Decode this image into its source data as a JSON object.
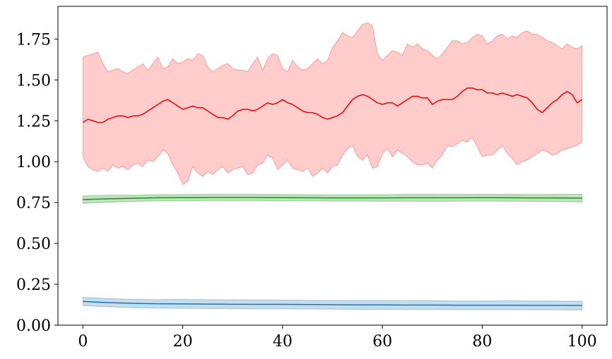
{
  "chart_data": {
    "type": "area",
    "title": "",
    "xlabel": "",
    "ylabel": "",
    "xlim": [
      -5,
      105
    ],
    "ylim": [
      0.0,
      1.95
    ],
    "grid": false,
    "legend": "none",
    "x_ticks": [
      0,
      20,
      40,
      60,
      80,
      100
    ],
    "x_tick_labels": [
      "0",
      "20",
      "40",
      "60",
      "80",
      "100"
    ],
    "y_ticks": [
      0.0,
      0.25,
      0.5,
      0.75,
      1.0,
      1.25,
      1.5,
      1.75
    ],
    "y_tick_labels": [
      "0.00",
      "0.25",
      "0.50",
      "0.75",
      "1.00",
      "1.25",
      "1.50",
      "1.75"
    ],
    "series": [
      {
        "color": "#ff0000",
        "band_color": "#ff0000",
        "band_opacity": 0.2,
        "x": [
          0,
          1,
          2,
          3,
          4,
          5,
          6,
          7,
          8,
          9,
          10,
          11,
          12,
          13,
          14,
          15,
          16,
          17,
          18,
          19,
          20,
          21,
          22,
          23,
          24,
          25,
          26,
          27,
          28,
          29,
          30,
          31,
          32,
          33,
          34,
          35,
          36,
          37,
          38,
          39,
          40,
          41,
          42,
          43,
          44,
          45,
          46,
          47,
          48,
          49,
          50,
          51,
          52,
          53,
          54,
          55,
          56,
          57,
          58,
          59,
          60,
          61,
          62,
          63,
          64,
          65,
          66,
          67,
          68,
          69,
          70,
          71,
          72,
          73,
          74,
          75,
          76,
          77,
          78,
          79,
          80,
          81,
          82,
          83,
          84,
          85,
          86,
          87,
          88,
          89,
          90,
          91,
          92,
          93,
          94,
          95,
          96,
          97,
          98,
          99,
          100
        ],
        "mean": [
          1.24,
          1.26,
          1.25,
          1.24,
          1.24,
          1.26,
          1.27,
          1.28,
          1.28,
          1.27,
          1.28,
          1.28,
          1.29,
          1.31,
          1.33,
          1.35,
          1.37,
          1.38,
          1.36,
          1.34,
          1.32,
          1.33,
          1.34,
          1.33,
          1.33,
          1.31,
          1.29,
          1.27,
          1.27,
          1.26,
          1.28,
          1.31,
          1.32,
          1.32,
          1.31,
          1.32,
          1.34,
          1.36,
          1.35,
          1.36,
          1.38,
          1.36,
          1.35,
          1.33,
          1.31,
          1.3,
          1.3,
          1.29,
          1.27,
          1.26,
          1.27,
          1.28,
          1.3,
          1.34,
          1.38,
          1.4,
          1.41,
          1.4,
          1.38,
          1.36,
          1.35,
          1.36,
          1.36,
          1.34,
          1.36,
          1.38,
          1.4,
          1.4,
          1.39,
          1.39,
          1.35,
          1.37,
          1.38,
          1.38,
          1.38,
          1.4,
          1.43,
          1.45,
          1.45,
          1.44,
          1.44,
          1.42,
          1.42,
          1.41,
          1.42,
          1.41,
          1.4,
          1.41,
          1.4,
          1.39,
          1.36,
          1.32,
          1.3,
          1.33,
          1.36,
          1.38,
          1.41,
          1.43,
          1.41,
          1.36,
          1.38
        ],
        "upper": [
          1.64,
          1.65,
          1.66,
          1.67,
          1.6,
          1.55,
          1.56,
          1.57,
          1.55,
          1.54,
          1.56,
          1.58,
          1.6,
          1.56,
          1.6,
          1.64,
          1.57,
          1.58,
          1.63,
          1.6,
          1.61,
          1.63,
          1.62,
          1.66,
          1.65,
          1.58,
          1.55,
          1.57,
          1.59,
          1.6,
          1.57,
          1.56,
          1.56,
          1.55,
          1.6,
          1.64,
          1.56,
          1.63,
          1.66,
          1.65,
          1.57,
          1.55,
          1.62,
          1.58,
          1.56,
          1.57,
          1.6,
          1.63,
          1.6,
          1.62,
          1.7,
          1.74,
          1.79,
          1.77,
          1.76,
          1.8,
          1.84,
          1.85,
          1.83,
          1.66,
          1.62,
          1.65,
          1.68,
          1.67,
          1.65,
          1.72,
          1.7,
          1.72,
          1.69,
          1.68,
          1.65,
          1.63,
          1.66,
          1.7,
          1.74,
          1.74,
          1.72,
          1.73,
          1.76,
          1.78,
          1.77,
          1.72,
          1.74,
          1.77,
          1.78,
          1.75,
          1.77,
          1.76,
          1.79,
          1.8,
          1.78,
          1.78,
          1.76,
          1.74,
          1.73,
          1.71,
          1.69,
          1.72,
          1.7,
          1.69,
          1.71
        ],
        "lower": [
          1.03,
          0.97,
          0.95,
          0.94,
          0.96,
          0.94,
          0.98,
          0.96,
          0.97,
          0.95,
          0.98,
          0.99,
          0.97,
          1.01,
          1.0,
          1.03,
          1.07,
          1.05,
          0.98,
          0.93,
          0.86,
          0.88,
          0.97,
          0.93,
          0.91,
          0.94,
          0.92,
          0.95,
          0.97,
          0.93,
          0.95,
          0.96,
          0.97,
          0.92,
          0.93,
          0.98,
          0.99,
          1.04,
          1.02,
          0.95,
          0.98,
          1.01,
          0.96,
          0.95,
          0.94,
          0.96,
          0.91,
          0.93,
          0.96,
          0.93,
          0.97,
          0.98,
          1.04,
          1.08,
          1.1,
          1.03,
          1.01,
          1.04,
          0.96,
          0.97,
          1.05,
          1.08,
          1.03,
          1.07,
          1.05,
          1.03,
          1.0,
          0.98,
          0.98,
          0.99,
          0.96,
          1.01,
          1.04,
          1.1,
          1.09,
          1.11,
          1.13,
          1.12,
          1.15,
          1.09,
          1.03,
          1.04,
          1.04,
          1.07,
          1.1,
          1.05,
          1.02,
          0.98,
          1.0,
          1.01,
          1.03,
          1.05,
          1.07,
          1.06,
          1.04,
          1.05,
          1.07,
          1.08,
          1.09,
          1.1,
          1.12
        ]
      },
      {
        "color": "#2a8a2a",
        "band_color": "#2ca02c",
        "band_opacity": 0.3,
        "x": [
          0,
          5,
          10,
          15,
          20,
          25,
          30,
          35,
          40,
          45,
          50,
          55,
          60,
          65,
          70,
          75,
          80,
          85,
          90,
          95,
          100
        ],
        "mean": [
          0.768,
          0.773,
          0.776,
          0.779,
          0.78,
          0.781,
          0.781,
          0.781,
          0.78,
          0.779,
          0.778,
          0.778,
          0.778,
          0.779,
          0.779,
          0.779,
          0.78,
          0.779,
          0.778,
          0.778,
          0.777
        ],
        "upper": [
          0.79,
          0.795,
          0.795,
          0.798,
          0.799,
          0.8,
          0.8,
          0.8,
          0.799,
          0.798,
          0.797,
          0.797,
          0.798,
          0.8,
          0.801,
          0.8,
          0.801,
          0.8,
          0.799,
          0.8,
          0.8
        ],
        "lower": [
          0.745,
          0.752,
          0.757,
          0.76,
          0.761,
          0.762,
          0.762,
          0.762,
          0.761,
          0.76,
          0.759,
          0.759,
          0.758,
          0.758,
          0.757,
          0.758,
          0.759,
          0.758,
          0.757,
          0.756,
          0.754
        ]
      },
      {
        "color": "#1f77b4",
        "band_color": "#1f77b4",
        "band_opacity": 0.25,
        "x": [
          0,
          5,
          10,
          15,
          20,
          25,
          30,
          35,
          40,
          45,
          50,
          55,
          60,
          65,
          70,
          75,
          80,
          85,
          90,
          95,
          100
        ],
        "mean": [
          0.145,
          0.138,
          0.133,
          0.131,
          0.13,
          0.129,
          0.128,
          0.127,
          0.127,
          0.126,
          0.125,
          0.124,
          0.124,
          0.123,
          0.123,
          0.122,
          0.122,
          0.122,
          0.121,
          0.121,
          0.12
        ],
        "upper": [
          0.17,
          0.163,
          0.158,
          0.156,
          0.158,
          0.156,
          0.155,
          0.154,
          0.153,
          0.152,
          0.151,
          0.15,
          0.15,
          0.149,
          0.149,
          0.148,
          0.148,
          0.149,
          0.148,
          0.147,
          0.146
        ],
        "lower": [
          0.12,
          0.112,
          0.107,
          0.105,
          0.103,
          0.102,
          0.101,
          0.1,
          0.1,
          0.099,
          0.098,
          0.097,
          0.097,
          0.096,
          0.096,
          0.095,
          0.095,
          0.095,
          0.094,
          0.094,
          0.093
        ]
      }
    ]
  }
}
